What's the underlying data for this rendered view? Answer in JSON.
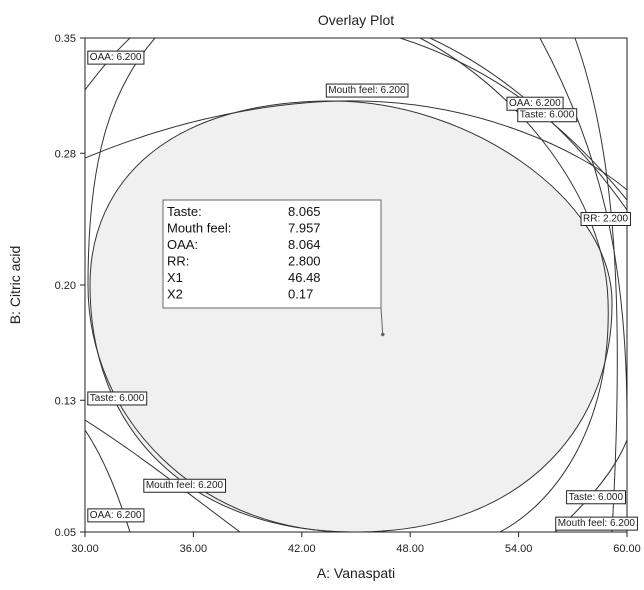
{
  "chart_data": {
    "type": "overlay-contour",
    "title": "Overlay Plot",
    "xlabel": "A: Vanaspati",
    "ylabel": "B: Citric acid",
    "xlim": [
      30,
      60
    ],
    "ylim": [
      0.05,
      0.35
    ],
    "xticks": [
      "30.00",
      "36.00",
      "42.00",
      "48.00",
      "54.00",
      "60.00"
    ],
    "yticks": [
      "0.05",
      "0.13",
      "0.20",
      "0.28",
      "0.35"
    ],
    "feasible_region": {
      "fill": "#f0f0f0"
    },
    "contour_labels": [
      {
        "text": "OAA: 6.200",
        "x": 30.1,
        "y": 0.339
      },
      {
        "text": "Mouth feel: 6.200",
        "x": 43.3,
        "y": 0.319
      },
      {
        "text": "OAA: 6.200",
        "x": 53.3,
        "y": 0.311
      },
      {
        "text": "Taste: 6.000",
        "x": 53.9,
        "y": 0.304
      },
      {
        "text": "RR: 2.200",
        "x": 57.4,
        "y": 0.241
      },
      {
        "text": "Taste: 6.000",
        "x": 30.1,
        "y": 0.132
      },
      {
        "text": "Mouth feel: 6.200",
        "x": 33.2,
        "y": 0.079
      },
      {
        "text": "OAA: 6.200",
        "x": 30.1,
        "y": 0.061
      },
      {
        "text": "Taste: 6.000",
        "x": 56.6,
        "y": 0.072
      },
      {
        "text": "Mouth feel: 6.200",
        "x": 56.0,
        "y": 0.056
      }
    ],
    "selected_point": {
      "x": 46.48,
      "y": 0.17
    },
    "info_box": [
      {
        "name": "Taste:",
        "value": "8.065"
      },
      {
        "name": "Mouth feel:",
        "value": "7.957"
      },
      {
        "name": "OAA:",
        "value": "8.064"
      },
      {
        "name": "RR:",
        "value": "2.800"
      },
      {
        "name": "X1",
        "value": "46.48"
      },
      {
        "name": "X2",
        "value": "0.17"
      }
    ],
    "grid": false,
    "legend": "none"
  }
}
